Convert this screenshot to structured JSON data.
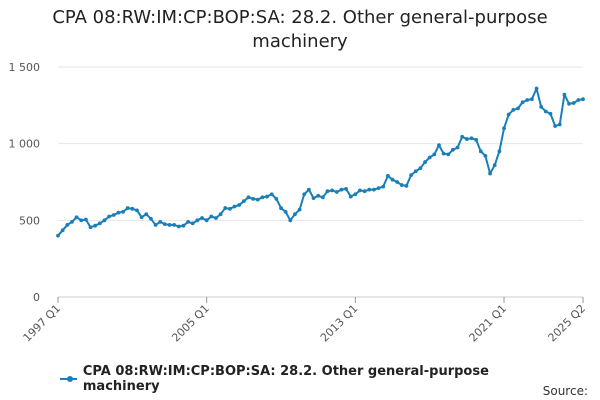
{
  "chart_data": {
    "type": "line",
    "title": "CPA 08:RW:IM:CP:BOP:SA: 28.2. Other general-purpose machinery",
    "xlabel": "",
    "ylabel": "",
    "ylim": [
      0,
      1500
    ],
    "y_ticks": [
      {
        "value": 0,
        "label": "0"
      },
      {
        "value": 500,
        "label": "500"
      },
      {
        "value": 1000,
        "label": "1 000"
      },
      {
        "value": 1500,
        "label": "1 500"
      }
    ],
    "x_ticks": [
      "1997 Q1",
      "2005 Q1",
      "2013 Q1",
      "2021 Q1",
      "2025 Q2"
    ],
    "grid": true,
    "legend_position": "bottom",
    "color": "#1a7fb8",
    "x": [
      "1997 Q1",
      "1997 Q2",
      "1997 Q3",
      "1997 Q4",
      "1998 Q1",
      "1998 Q2",
      "1998 Q3",
      "1998 Q4",
      "1999 Q1",
      "1999 Q2",
      "1999 Q3",
      "1999 Q4",
      "2000 Q1",
      "2000 Q2",
      "2000 Q3",
      "2000 Q4",
      "2001 Q1",
      "2001 Q2",
      "2001 Q3",
      "2001 Q4",
      "2002 Q1",
      "2002 Q2",
      "2002 Q3",
      "2002 Q4",
      "2003 Q1",
      "2003 Q2",
      "2003 Q3",
      "2003 Q4",
      "2004 Q1",
      "2004 Q2",
      "2004 Q3",
      "2004 Q4",
      "2005 Q1",
      "2005 Q2",
      "2005 Q3",
      "2005 Q4",
      "2006 Q1",
      "2006 Q2",
      "2006 Q3",
      "2006 Q4",
      "2007 Q1",
      "2007 Q2",
      "2007 Q3",
      "2007 Q4",
      "2008 Q1",
      "2008 Q2",
      "2008 Q3",
      "2008 Q4",
      "2009 Q1",
      "2009 Q2",
      "2009 Q3",
      "2009 Q4",
      "2010 Q1",
      "2010 Q2",
      "2010 Q3",
      "2010 Q4",
      "2011 Q1",
      "2011 Q2",
      "2011 Q3",
      "2011 Q4",
      "2012 Q1",
      "2012 Q2",
      "2012 Q3",
      "2012 Q4",
      "2013 Q1",
      "2013 Q2",
      "2013 Q3",
      "2013 Q4",
      "2014 Q1",
      "2014 Q2",
      "2014 Q3",
      "2014 Q4",
      "2015 Q1",
      "2015 Q2",
      "2015 Q3",
      "2015 Q4",
      "2016 Q1",
      "2016 Q2",
      "2016 Q3",
      "2016 Q4",
      "2017 Q1",
      "2017 Q2",
      "2017 Q3",
      "2017 Q4",
      "2018 Q1",
      "2018 Q2",
      "2018 Q3",
      "2018 Q4",
      "2019 Q1",
      "2019 Q2",
      "2019 Q3",
      "2019 Q4",
      "2020 Q1",
      "2020 Q2",
      "2020 Q3",
      "2020 Q4",
      "2021 Q1",
      "2021 Q2",
      "2021 Q3",
      "2021 Q4",
      "2022 Q1",
      "2022 Q2",
      "2022 Q3",
      "2022 Q4",
      "2023 Q1",
      "2023 Q2",
      "2023 Q3",
      "2023 Q4",
      "2024 Q1",
      "2024 Q2",
      "2024 Q3",
      "2024 Q4",
      "2025 Q1",
      "2025 Q2"
    ],
    "series": [
      {
        "name": "CPA 08:RW:IM:CP:BOP:SA: 28.2. Other general-purpose machinery",
        "values": [
          400,
          435,
          470,
          490,
          520,
          500,
          505,
          455,
          465,
          480,
          500,
          525,
          535,
          550,
          555,
          580,
          575,
          565,
          520,
          540,
          510,
          470,
          490,
          475,
          470,
          470,
          460,
          465,
          490,
          480,
          500,
          515,
          500,
          525,
          515,
          540,
          580,
          575,
          590,
          600,
          625,
          650,
          640,
          635,
          650,
          655,
          670,
          640,
          580,
          555,
          500,
          540,
          570,
          670,
          700,
          645,
          660,
          650,
          690,
          695,
          685,
          700,
          705,
          655,
          670,
          695,
          690,
          700,
          700,
          710,
          720,
          790,
          765,
          750,
          730,
          725,
          795,
          820,
          840,
          880,
          910,
          930,
          990,
          935,
          930,
          960,
          975,
          1045,
          1030,
          1035,
          1025,
          950,
          920,
          805,
          860,
          950,
          1100,
          1190,
          1220,
          1230,
          1270,
          1285,
          1290,
          1360,
          1240,
          1210,
          1195,
          1115,
          1125,
          1320,
          1260,
          1265,
          1285,
          1290
        ]
      }
    ]
  },
  "legend": {
    "label": "CPA 08:RW:IM:CP:BOP:SA: 28.2. Other general-purpose machinery"
  },
  "source": {
    "label": "Source:"
  }
}
